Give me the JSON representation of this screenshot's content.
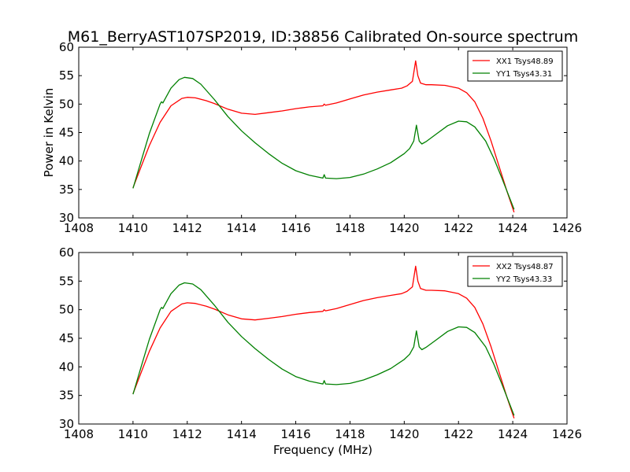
{
  "title": "M61_BerryAST107SP2019, ID:38856 Calibrated On-source spectrum",
  "colors": {
    "xx": "#ff0000",
    "yy": "#008000"
  },
  "chart_data": [
    {
      "type": "line",
      "ylabel": "Power in Kelvin",
      "xlabel": "",
      "xlim": [
        1408,
        1426
      ],
      "ylim": [
        30,
        60
      ],
      "xticks": [
        "1408",
        "1410",
        "1412",
        "1414",
        "1416",
        "1418",
        "1420",
        "1422",
        "1424",
        "1426"
      ],
      "yticks": [
        "30",
        "35",
        "40",
        "45",
        "50",
        "55",
        "60"
      ],
      "legend": "top-right",
      "series": [
        {
          "name": "XX1 Tsys48.89",
          "color": "#ff0000",
          "x": [
            1410,
            1410.3,
            1410.6,
            1411,
            1411.4,
            1411.8,
            1412,
            1412.3,
            1412.7,
            1413,
            1413.5,
            1414,
            1414.5,
            1415,
            1415.5,
            1416,
            1416.5,
            1417,
            1417.05,
            1417.1,
            1417.5,
            1418,
            1418.5,
            1419,
            1419.5,
            1419.9,
            1420.1,
            1420.3,
            1420.42,
            1420.5,
            1420.6,
            1420.8,
            1421,
            1421.5,
            1422,
            1422.3,
            1422.6,
            1422.9,
            1423.2,
            1423.5,
            1423.8,
            1424.05
          ],
          "y": [
            35.3,
            39,
            42.7,
            46.8,
            49.7,
            51.0,
            51.2,
            51.1,
            50.6,
            50.1,
            49.1,
            48.4,
            48.2,
            48.5,
            48.8,
            49.2,
            49.5,
            49.7,
            50.0,
            49.8,
            50.2,
            50.9,
            51.6,
            52.1,
            52.5,
            52.8,
            53.2,
            54.0,
            57.6,
            55.0,
            53.7,
            53.4,
            53.4,
            53.3,
            52.8,
            52.0,
            50.4,
            47.5,
            43.5,
            39.0,
            34.5,
            31.0
          ]
        },
        {
          "name": "YY1 Tsys43.31",
          "color": "#008000",
          "x": [
            1410,
            1410.3,
            1410.6,
            1411,
            1411.05,
            1411.1,
            1411.4,
            1411.7,
            1411.9,
            1412.2,
            1412.5,
            1413,
            1413.5,
            1414,
            1414.5,
            1415,
            1415.5,
            1416,
            1416.5,
            1417,
            1417.05,
            1417.1,
            1417.5,
            1418,
            1418.5,
            1419,
            1419.5,
            1420,
            1420.2,
            1420.35,
            1420.45,
            1420.55,
            1420.65,
            1420.8,
            1421.2,
            1421.6,
            1422,
            1422.3,
            1422.6,
            1423,
            1423.3,
            1423.6,
            1424.05
          ],
          "y": [
            35.2,
            40,
            44.8,
            50.0,
            50.4,
            50.2,
            52.8,
            54.3,
            54.7,
            54.5,
            53.5,
            50.8,
            47.8,
            45.3,
            43.2,
            41.3,
            39.6,
            38.3,
            37.5,
            37.0,
            37.6,
            37.0,
            36.9,
            37.1,
            37.7,
            38.6,
            39.7,
            41.3,
            42.2,
            43.5,
            46.3,
            43.5,
            43.0,
            43.4,
            44.8,
            46.2,
            47.0,
            46.9,
            46.0,
            43.5,
            40.5,
            37.0,
            31.5
          ]
        }
      ]
    },
    {
      "type": "line",
      "ylabel": "",
      "xlabel": "Frequency (MHz)",
      "xlim": [
        1408,
        1426
      ],
      "ylim": [
        30,
        60
      ],
      "xticks": [
        "1408",
        "1410",
        "1412",
        "1414",
        "1416",
        "1418",
        "1420",
        "1422",
        "1424",
        "1426"
      ],
      "yticks": [
        "30",
        "35",
        "40",
        "45",
        "50",
        "55",
        "60"
      ],
      "legend": "top-right",
      "series": [
        {
          "name": "XX2 Tsys48.87",
          "color": "#ff0000",
          "x": [
            1410,
            1410.3,
            1410.6,
            1411,
            1411.4,
            1411.8,
            1412,
            1412.3,
            1412.7,
            1413,
            1413.5,
            1414,
            1414.5,
            1415,
            1415.5,
            1416,
            1416.5,
            1417,
            1417.05,
            1417.1,
            1417.5,
            1418,
            1418.5,
            1419,
            1419.5,
            1419.9,
            1420.1,
            1420.3,
            1420.42,
            1420.5,
            1420.6,
            1420.8,
            1421,
            1421.5,
            1422,
            1422.3,
            1422.6,
            1422.9,
            1423.2,
            1423.5,
            1423.8,
            1424.05
          ],
          "y": [
            35.3,
            39,
            42.7,
            46.8,
            49.7,
            51.0,
            51.2,
            51.1,
            50.6,
            50.1,
            49.1,
            48.4,
            48.2,
            48.5,
            48.8,
            49.2,
            49.5,
            49.7,
            50.0,
            49.8,
            50.2,
            50.9,
            51.6,
            52.1,
            52.5,
            52.8,
            53.2,
            54.0,
            57.6,
            55.0,
            53.7,
            53.4,
            53.4,
            53.3,
            52.8,
            52.0,
            50.4,
            47.5,
            43.5,
            39.0,
            34.5,
            31.0
          ]
        },
        {
          "name": "YY2 Tsys43.33",
          "color": "#008000",
          "x": [
            1410,
            1410.3,
            1410.6,
            1411,
            1411.05,
            1411.1,
            1411.4,
            1411.7,
            1411.9,
            1412.2,
            1412.5,
            1413,
            1413.5,
            1414,
            1414.5,
            1415,
            1415.5,
            1416,
            1416.5,
            1417,
            1417.05,
            1417.1,
            1417.5,
            1418,
            1418.5,
            1419,
            1419.5,
            1420,
            1420.2,
            1420.35,
            1420.45,
            1420.55,
            1420.65,
            1420.8,
            1421.2,
            1421.6,
            1422,
            1422.3,
            1422.6,
            1423,
            1423.3,
            1423.6,
            1424.05
          ],
          "y": [
            35.2,
            40,
            44.8,
            50.0,
            50.4,
            50.2,
            52.8,
            54.3,
            54.7,
            54.5,
            53.5,
            50.8,
            47.8,
            45.3,
            43.2,
            41.3,
            39.6,
            38.3,
            37.5,
            37.0,
            37.6,
            37.0,
            36.9,
            37.1,
            37.7,
            38.6,
            39.7,
            41.3,
            42.2,
            43.5,
            46.3,
            43.5,
            43.0,
            43.4,
            44.8,
            46.2,
            47.0,
            46.9,
            46.0,
            43.5,
            40.5,
            37.0,
            31.5
          ]
        }
      ]
    }
  ]
}
